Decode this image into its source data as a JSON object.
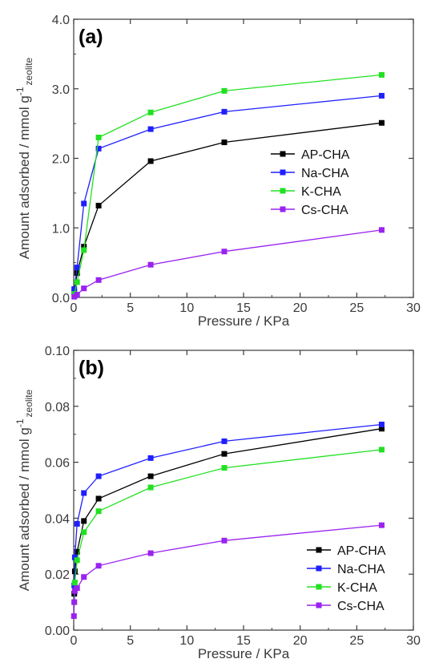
{
  "chart_data": [
    {
      "type": "line",
      "panel_label": "(a)",
      "xlabel": "Pressure / KPa",
      "ylabel_main": "Amount adsorbed / mmol g",
      "ylabel_sup": "-1",
      "ylabel_sub": "zeolite",
      "xlim": [
        0,
        30
      ],
      "ylim": [
        0,
        4
      ],
      "xticks": [
        "0",
        "5",
        "10",
        "15",
        "20",
        "25",
        "30"
      ],
      "yticks": [
        "0.0",
        "1.0",
        "2.0",
        "3.0",
        "4.0"
      ],
      "grid": false,
      "legend_position": "center-right",
      "series": [
        {
          "name": "AP-CHA",
          "color": "#000000",
          "x": [
            0.05,
            0.3,
            0.9,
            2.2,
            6.8,
            13.3,
            27.2
          ],
          "y": [
            0.08,
            0.35,
            0.73,
            1.32,
            1.96,
            2.23,
            2.51
          ]
        },
        {
          "name": "Na-CHA",
          "color": "#1f1fff",
          "x": [
            0.05,
            0.3,
            0.9,
            2.2,
            6.8,
            13.3,
            27.2
          ],
          "y": [
            0.12,
            0.43,
            1.35,
            2.14,
            2.42,
            2.67,
            2.9
          ]
        },
        {
          "name": "K-CHA",
          "color": "#22e022",
          "x": [
            0.05,
            0.3,
            0.9,
            2.2,
            6.8,
            13.3,
            27.2
          ],
          "y": [
            0.05,
            0.22,
            0.68,
            2.3,
            2.66,
            2.97,
            3.2
          ]
        },
        {
          "name": "Cs-CHA",
          "color": "#9a22f0",
          "x": [
            0.05,
            0.3,
            0.9,
            2.2,
            6.8,
            13.3,
            27.2
          ],
          "y": [
            0.01,
            0.04,
            0.13,
            0.25,
            0.47,
            0.66,
            0.97
          ]
        }
      ]
    },
    {
      "type": "line",
      "panel_label": "(b)",
      "xlabel": "Pressure / KPa",
      "ylabel_main": "Amount adsorbed / mmol g",
      "ylabel_sup": "-1",
      "ylabel_sub": "zeolite",
      "xlim": [
        0,
        30
      ],
      "ylim": [
        0,
        0.1
      ],
      "xticks": [
        "0",
        "5",
        "10",
        "15",
        "20",
        "25",
        "30"
      ],
      "yticks": [
        "0.00",
        "0.02",
        "0.04",
        "0.06",
        "0.08",
        "0.10"
      ],
      "grid": false,
      "legend_position": "bottom-right",
      "series": [
        {
          "name": "AP-CHA",
          "color": "#000000",
          "x": [
            0.05,
            0.1,
            0.3,
            0.9,
            2.2,
            6.8,
            13.3,
            27.2
          ],
          "y": [
            0.013,
            0.021,
            0.028,
            0.039,
            0.047,
            0.055,
            0.063,
            0.072
          ]
        },
        {
          "name": "Na-CHA",
          "color": "#1f1fff",
          "x": [
            0.05,
            0.1,
            0.3,
            0.9,
            2.2,
            6.8,
            13.3,
            27.2
          ],
          "y": [
            0.016,
            0.026,
            0.038,
            0.049,
            0.055,
            0.0615,
            0.0675,
            0.0735
          ]
        },
        {
          "name": "K-CHA",
          "color": "#22e022",
          "x": [
            0.05,
            0.1,
            0.3,
            0.9,
            2.2,
            6.8,
            13.3,
            27.2
          ],
          "y": [
            0.01,
            0.017,
            0.025,
            0.035,
            0.0425,
            0.051,
            0.058,
            0.0645
          ]
        },
        {
          "name": "Cs-CHA",
          "color": "#9a22f0",
          "x": [
            0.02,
            0.05,
            0.1,
            0.3,
            0.9,
            2.2,
            6.8,
            13.3,
            27.2
          ],
          "y": [
            0.005,
            0.01,
            0.014,
            0.015,
            0.019,
            0.023,
            0.0275,
            0.032,
            0.0375
          ]
        }
      ]
    }
  ]
}
